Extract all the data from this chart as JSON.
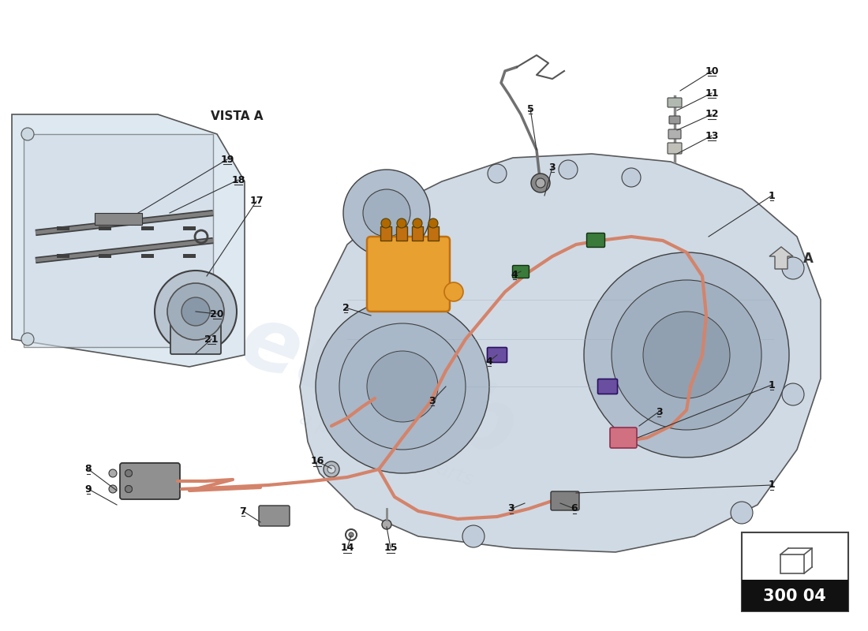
{
  "bg_color": "#ffffff",
  "ref_number": "300 04",
  "vista_label": "VISTA A",
  "arrow_label": "A",
  "cable_color": "#d4836a",
  "connector_purple": "#6a4fa0",
  "connector_green": "#3a7a3a",
  "connector_pink": "#c06080",
  "orange_fill": "#e8a030",
  "orange_dark": "#c07010",
  "gearbox_light": "#c8d4e0",
  "gearbox_mid": "#b0bece",
  "gearbox_dark": "#8898a8",
  "line_color": "#404040",
  "label_color": "#111111",
  "watermark_color": "#c8d8e8",
  "watermark_alpha": 0.5,
  "sensor_gray": "#909090",
  "detail_bg": "#dde8f0"
}
